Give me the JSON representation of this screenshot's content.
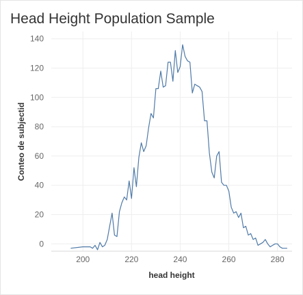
{
  "chart_data": {
    "type": "line",
    "title": "Head Height Population Sample",
    "xlabel": "head height",
    "ylabel": "Conteo de subjectid",
    "xlim": [
      187,
      286
    ],
    "ylim": [
      -5,
      145
    ],
    "x_ticks": [
      "200",
      "220",
      "240",
      "260",
      "280"
    ],
    "y_ticks": [
      "0",
      "20",
      "40",
      "60",
      "80",
      "100",
      "120",
      "140"
    ],
    "grid": true,
    "line_color": "#4e79a7",
    "series": [
      {
        "x": [
          195,
          200,
          202,
          203,
          204,
          205,
          206,
          207,
          208,
          209,
          210,
          211,
          212,
          213,
          214,
          215,
          216,
          217,
          218,
          219,
          220,
          221,
          222,
          223,
          224,
          225,
          226,
          227,
          228,
          229,
          230,
          231,
          232,
          233,
          234,
          235,
          236,
          237,
          238,
          239,
          240,
          241,
          242,
          243,
          244,
          245,
          246,
          247,
          248,
          249,
          250,
          251,
          252,
          253,
          254,
          255,
          256,
          257,
          258,
          259,
          260,
          261,
          262,
          263,
          264,
          265,
          266,
          267,
          268,
          269,
          270,
          271,
          272,
          273,
          274,
          275,
          276,
          277,
          278,
          279,
          280,
          281,
          282,
          283,
          284
        ],
        "y": [
          -3,
          -2,
          -2,
          -2,
          -3,
          -1,
          -4,
          1,
          -2,
          -1,
          3,
          12,
          21,
          6,
          5,
          22,
          28,
          32,
          30,
          43,
          31,
          52,
          39,
          59,
          69,
          63,
          67,
          79,
          89,
          86,
          106,
          106,
          118,
          107,
          108,
          124,
          124,
          111,
          132,
          117,
          121,
          136,
          128,
          125,
          124,
          103,
          109,
          108,
          107,
          104,
          84,
          84,
          62,
          49,
          45,
          60,
          63,
          42,
          40,
          40,
          36,
          25,
          21,
          22,
          18,
          21,
          11,
          12,
          6,
          7,
          3,
          4,
          -1,
          0,
          1,
          3,
          0,
          -2,
          -1,
          0,
          0,
          -2,
          -3,
          -3,
          -3
        ]
      }
    ]
  }
}
